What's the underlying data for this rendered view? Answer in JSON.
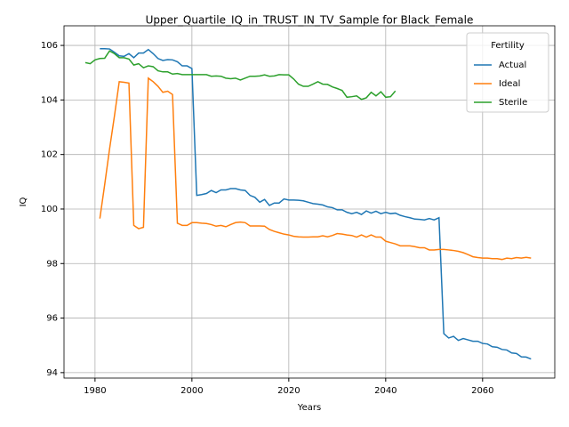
{
  "chart_data": {
    "type": "line",
    "title": "Upper_Quartile_IQ_in_TRUST_IN_TV_Sample for Black_Female",
    "x_label": "Years",
    "y_label": "IQ",
    "legend_title": "Fertility",
    "legend_position": "upper right",
    "grid": true,
    "xlim": [
      1973.6,
      2074.9
    ],
    "xticks": [
      1980,
      2000,
      2020,
      2040,
      2060
    ],
    "ylim": [
      93.8,
      106.72
    ],
    "yticks": [
      94,
      96,
      98,
      100,
      102,
      104,
      106
    ],
    "series": [
      {
        "name": "Actual",
        "color": "#1f77b4",
        "x": [
          1981,
          1982,
          1983,
          1984,
          1985,
          1986,
          1987,
          1988,
          1989,
          1990,
          1991,
          1992,
          1993,
          1994,
          1995,
          1996,
          1997,
          1998,
          1999,
          2000,
          2001,
          2002,
          2003,
          2004,
          2005,
          2006,
          2007,
          2008,
          2009,
          2010,
          2011,
          2012,
          2013,
          2014,
          2015,
          2016,
          2017,
          2018,
          2019,
          2020,
          2021,
          2022,
          2023,
          2024,
          2025,
          2026,
          2027,
          2028,
          2029,
          2030,
          2031,
          2032,
          2033,
          2034,
          2035,
          2036,
          2037,
          2038,
          2039,
          2040,
          2041,
          2042,
          2043,
          2044,
          2045,
          2046,
          2047,
          2048,
          2049,
          2050,
          2051,
          2052,
          2053,
          2054,
          2055,
          2056,
          2057,
          2058,
          2059,
          2060,
          2061,
          2062,
          2063,
          2064,
          2065,
          2066,
          2067,
          2068,
          2069,
          2070
        ],
        "values": [
          105.88,
          105.88,
          105.87,
          105.75,
          105.62,
          105.6,
          105.7,
          105.55,
          105.72,
          105.72,
          105.85,
          105.7,
          105.52,
          105.45,
          105.48,
          105.47,
          105.4,
          105.25,
          105.25,
          105.15,
          100.5,
          100.53,
          100.57,
          100.68,
          100.6,
          100.7,
          100.7,
          100.75,
          100.75,
          100.7,
          100.68,
          100.5,
          100.43,
          100.25,
          100.35,
          100.13,
          100.22,
          100.22,
          100.37,
          100.33,
          100.33,
          100.32,
          100.3,
          100.25,
          100.2,
          100.18,
          100.15,
          100.08,
          100.05,
          99.97,
          99.97,
          99.88,
          99.83,
          99.88,
          99.8,
          99.93,
          99.85,
          99.92,
          99.83,
          99.88,
          99.83,
          99.85,
          99.77,
          99.72,
          99.68,
          99.63,
          99.62,
          99.6,
          99.65,
          99.6,
          99.68,
          95.43,
          95.27,
          95.33,
          95.18,
          95.25,
          95.2,
          95.15,
          95.15,
          95.07,
          95.05,
          94.95,
          94.93,
          94.85,
          94.83,
          94.72,
          94.7,
          94.58,
          94.57,
          94.5
        ]
      },
      {
        "name": "Ideal",
        "color": "#ff7f0e",
        "x": [
          1981,
          1982,
          1983,
          1984,
          1985,
          1986,
          1987,
          1988,
          1989,
          1990,
          1991,
          1992,
          1993,
          1994,
          1995,
          1996,
          1997,
          1998,
          1999,
          2000,
          2001,
          2002,
          2003,
          2004,
          2005,
          2006,
          2007,
          2008,
          2009,
          2010,
          2011,
          2012,
          2013,
          2014,
          2015,
          2016,
          2017,
          2018,
          2019,
          2020,
          2021,
          2022,
          2023,
          2024,
          2025,
          2026,
          2027,
          2028,
          2029,
          2030,
          2031,
          2032,
          2033,
          2034,
          2035,
          2036,
          2037,
          2038,
          2039,
          2040,
          2041,
          2042,
          2043,
          2044,
          2045,
          2046,
          2047,
          2048,
          2049,
          2050,
          2051,
          2052,
          2053,
          2054,
          2055,
          2056,
          2057,
          2058,
          2059,
          2060,
          2061,
          2062,
          2063,
          2064,
          2065,
          2066,
          2067,
          2068,
          2069,
          2070
        ],
        "values": [
          99.65,
          100.9,
          102.2,
          103.4,
          104.67,
          104.65,
          104.62,
          99.4,
          99.28,
          99.33,
          104.8,
          104.67,
          104.5,
          104.28,
          104.32,
          104.2,
          99.48,
          99.4,
          99.4,
          99.5,
          99.5,
          99.48,
          99.47,
          99.43,
          99.37,
          99.4,
          99.35,
          99.43,
          99.5,
          99.52,
          99.5,
          99.38,
          99.38,
          99.38,
          99.37,
          99.25,
          99.18,
          99.13,
          99.08,
          99.05,
          99.0,
          98.98,
          98.97,
          98.97,
          98.98,
          98.98,
          99.02,
          98.98,
          99.03,
          99.1,
          99.08,
          99.05,
          99.03,
          98.97,
          99.05,
          98.97,
          99.05,
          98.97,
          98.97,
          98.82,
          98.77,
          98.72,
          98.65,
          98.65,
          98.65,
          98.62,
          98.58,
          98.58,
          98.5,
          98.5,
          98.52,
          98.52,
          98.5,
          98.48,
          98.45,
          98.4,
          98.33,
          98.25,
          98.22,
          98.2,
          98.2,
          98.18,
          98.18,
          98.15,
          98.2,
          98.18,
          98.22,
          98.2,
          98.23,
          98.2
        ]
      },
      {
        "name": "Sterile",
        "color": "#2ca02c",
        "x": [
          1978,
          1979,
          1980,
          1981,
          1982,
          1983,
          1984,
          1985,
          1986,
          1987,
          1988,
          1989,
          1990,
          1991,
          1992,
          1993,
          1994,
          1995,
          1996,
          1997,
          1998,
          1999,
          2000,
          2001,
          2002,
          2003,
          2004,
          2005,
          2006,
          2007,
          2008,
          2009,
          2010,
          2011,
          2012,
          2013,
          2014,
          2015,
          2016,
          2017,
          2018,
          2019,
          2020,
          2021,
          2022,
          2023,
          2024,
          2025,
          2026,
          2027,
          2028,
          2029,
          2030,
          2031,
          2032,
          2033,
          2034,
          2035,
          2036,
          2037,
          2038,
          2039,
          2040,
          2041,
          2042
        ],
        "values": [
          105.37,
          105.33,
          105.47,
          105.52,
          105.53,
          105.8,
          105.7,
          105.55,
          105.55,
          105.5,
          105.28,
          105.33,
          105.18,
          105.25,
          105.22,
          105.07,
          105.03,
          105.03,
          104.95,
          104.97,
          104.93,
          104.93,
          104.93,
          104.93,
          104.93,
          104.93,
          104.87,
          104.88,
          104.87,
          104.8,
          104.78,
          104.8,
          104.73,
          104.8,
          104.87,
          104.87,
          104.88,
          104.92,
          104.87,
          104.88,
          104.93,
          104.92,
          104.92,
          104.77,
          104.58,
          104.5,
          104.5,
          104.58,
          104.67,
          104.58,
          104.57,
          104.48,
          104.42,
          104.35,
          104.1,
          104.12,
          104.15,
          104.02,
          104.08,
          104.28,
          104.15,
          104.3,
          104.1,
          104.12,
          104.33
        ]
      }
    ]
  }
}
